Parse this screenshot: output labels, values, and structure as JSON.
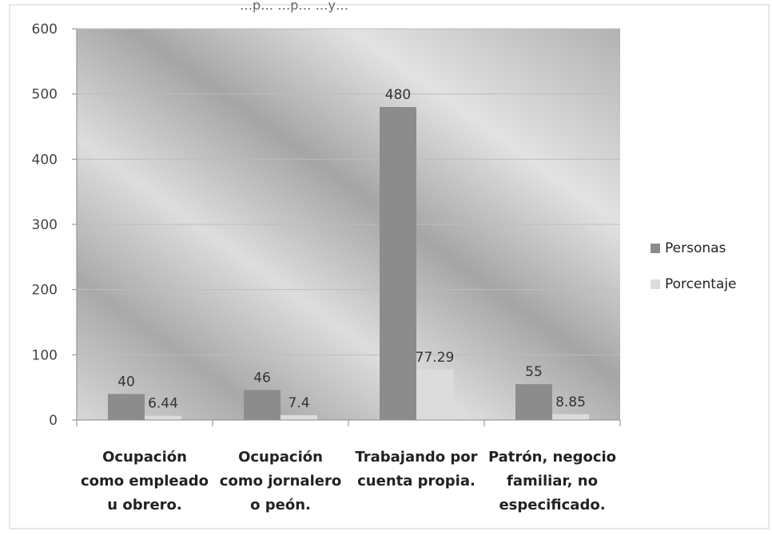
{
  "chart_data": {
    "type": "bar",
    "categories": [
      [
        "Ocupación",
        "como empleado",
        "u obrero."
      ],
      [
        "Ocupación",
        "como jornalero",
        "o peón."
      ],
      [
        "Trabajando por",
        "cuenta propia."
      ],
      [
        "Patrón, negocio",
        "familiar, no",
        "especificado."
      ]
    ],
    "series": [
      {
        "name": "Personas",
        "values": [
          40,
          46,
          480,
          55
        ],
        "labels": [
          "40",
          "46",
          "480",
          "55"
        ],
        "color": "#8c8c8c"
      },
      {
        "name": "Porcentaje",
        "values": [
          6.44,
          7.4,
          77.29,
          8.85
        ],
        "labels": [
          "6.44",
          "7.4",
          "77.29",
          "8.85"
        ],
        "color": "#dcdcdc"
      }
    ],
    "ylim": [
      0,
      600
    ],
    "yticks": [
      0,
      100,
      200,
      300,
      400,
      500,
      600
    ],
    "grid": true,
    "legend": "right",
    "top_caption": "…p…  …p…  …y…"
  }
}
